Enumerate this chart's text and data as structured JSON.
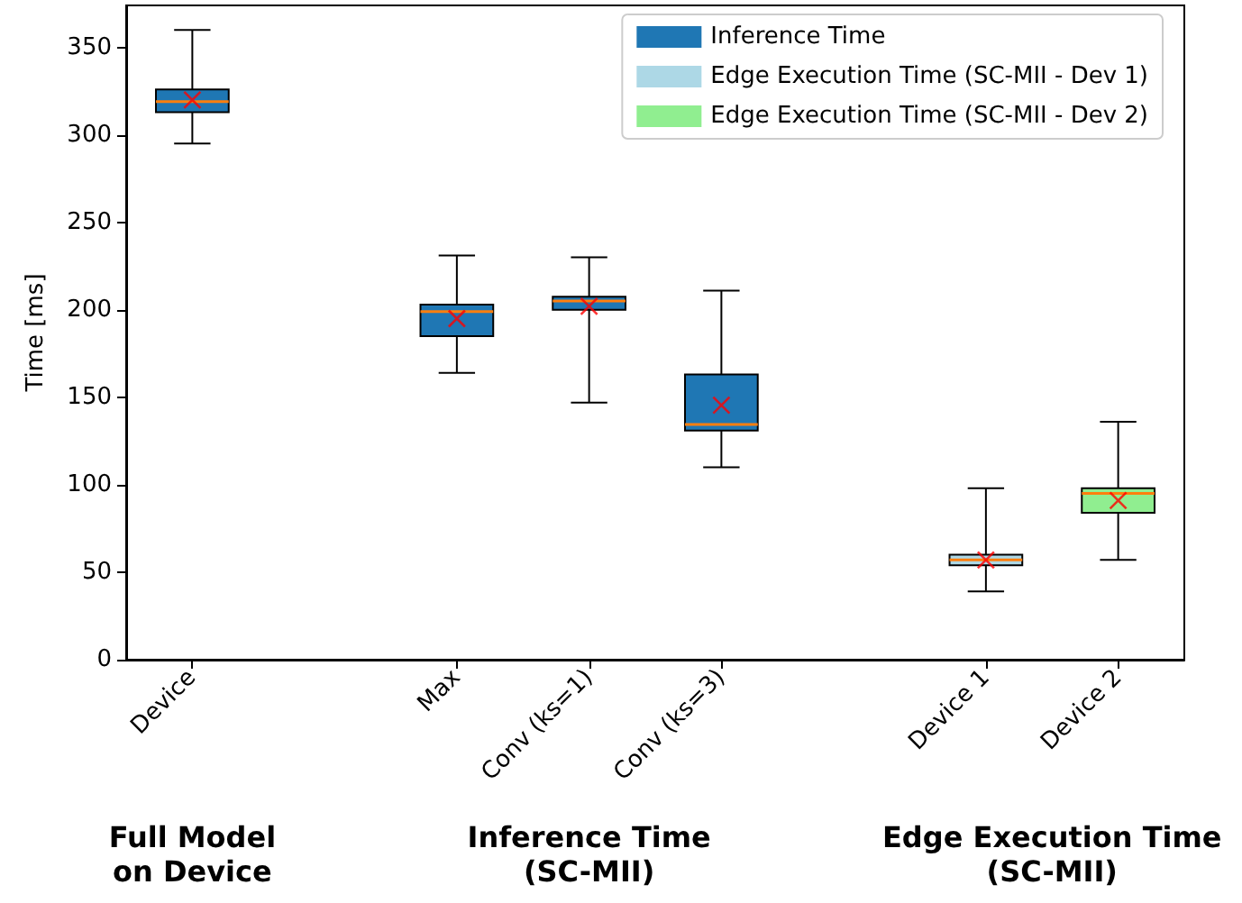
{
  "chart_data": {
    "type": "box",
    "ylabel": "Time [ms]",
    "categories": [
      "Device",
      null,
      "Max",
      "Conv (ks=1)",
      "Conv (ks=3)",
      null,
      "Device 1",
      "Device 2"
    ],
    "series": [
      {
        "name": "Inference Time",
        "color": "#1f77b4",
        "boxes": [
          {
            "low": 295,
            "q1": 313,
            "median": 319,
            "q3": 326,
            "high": 360,
            "mean": 320
          },
          null,
          {
            "low": 164,
            "q1": 185,
            "median": 199,
            "q3": 203,
            "high": 231,
            "mean": 195
          },
          {
            "low": 147,
            "q1": 200,
            "median": 205,
            "q3": 207.5,
            "high": 230,
            "mean": 202
          },
          {
            "low": 110,
            "q1": 131,
            "median": 134.5,
            "q3": 163,
            "high": 211,
            "mean": 145.5
          },
          null,
          null,
          null
        ]
      },
      {
        "name": "Edge Execution Time (SC-MII - Dev 1)",
        "color": "#add8e6",
        "boxes": [
          null,
          null,
          null,
          null,
          null,
          null,
          {
            "low": 39,
            "q1": 54,
            "median": 57,
            "q3": 60,
            "high": 98,
            "mean": 57
          },
          null
        ]
      },
      {
        "name": "Edge Execution Time (SC-MII - Dev 2)",
        "color": "#90ee90",
        "boxes": [
          null,
          null,
          null,
          null,
          null,
          null,
          null,
          {
            "low": 57,
            "q1": 84,
            "median": 95,
            "q3": 98,
            "high": 136,
            "mean": 91
          }
        ]
      }
    ],
    "ylim": [
      0,
      374
    ],
    "yticks": [
      0,
      50,
      100,
      150,
      200,
      250,
      300,
      350
    ],
    "grid": false,
    "legend": "top right",
    "annotations": [
      "Full Model\non Device",
      "Inference Time\n(SC-MII)",
      "Edge Execution Time\n(SC-MII)"
    ]
  }
}
